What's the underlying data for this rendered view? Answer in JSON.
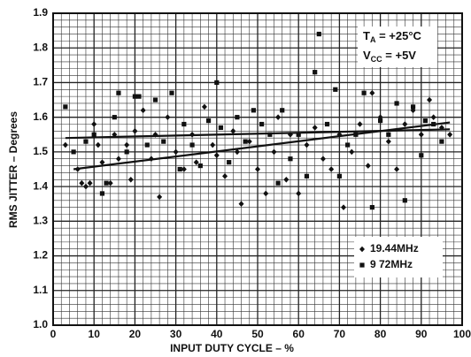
{
  "chart_data": {
    "type": "scatter",
    "xlabel": "INPUT DUTY CYCLE – %",
    "ylabel": "RMS JITTER – Degrees",
    "xlim": [
      0,
      100
    ],
    "ylim": [
      1.0,
      1.9
    ],
    "xticks": [
      0,
      10,
      20,
      30,
      40,
      50,
      60,
      70,
      80,
      90,
      100
    ],
    "yticks": [
      {
        "value": 1,
        "label": "1.0"
      },
      1.1,
      1.2,
      1.3,
      1.4,
      1.5,
      1.6,
      1.7,
      1.8,
      1.9
    ],
    "grid": true,
    "legend": "lower right",
    "annotations": [
      [
        "T",
        "A",
        " = +25°C"
      ],
      [
        "V",
        "CC",
        " = +5V"
      ]
    ],
    "series": [
      {
        "name": "19.44MHz",
        "marker": "diamond",
        "color": "#111",
        "x": [
          3,
          6,
          7,
          8,
          9,
          10,
          11,
          12,
          14,
          15,
          16,
          18,
          19,
          20,
          22,
          24,
          25,
          26,
          28,
          30,
          32,
          34,
          35,
          37,
          39,
          40,
          42,
          44,
          45,
          46,
          48,
          50,
          52,
          54,
          55,
          57,
          58,
          60,
          62,
          64,
          66,
          68,
          70,
          71,
          73,
          75,
          77,
          78,
          80,
          82,
          84,
          86,
          88,
          90,
          92,
          93,
          95,
          97
        ],
        "values": [
          1.52,
          1.45,
          1.41,
          1.4,
          1.41,
          1.58,
          1.52,
          1.47,
          1.41,
          1.55,
          1.48,
          1.52,
          1.42,
          1.56,
          1.62,
          1.48,
          1.55,
          1.37,
          1.6,
          1.5,
          1.45,
          1.55,
          1.47,
          1.63,
          1.52,
          1.49,
          1.43,
          1.56,
          1.5,
          1.35,
          1.53,
          1.45,
          1.38,
          1.5,
          1.6,
          1.42,
          1.55,
          1.38,
          1.52,
          1.57,
          1.48,
          1.45,
          1.55,
          1.34,
          1.5,
          1.58,
          1.46,
          1.67,
          1.6,
          1.53,
          1.45,
          1.58,
          1.62,
          1.55,
          1.65,
          1.6,
          1.57,
          1.55
        ]
      },
      {
        "name": "9 72MHz",
        "marker": "square",
        "color": "#111",
        "x": [
          3,
          5,
          8,
          10,
          12,
          13,
          15,
          16,
          18,
          20,
          21,
          23,
          25,
          27,
          29,
          31,
          32,
          34,
          36,
          38,
          40,
          41,
          43,
          45,
          47,
          49,
          51,
          53,
          55,
          56,
          58,
          60,
          62,
          64,
          65,
          67,
          69,
          70,
          72,
          74,
          76,
          78,
          80,
          82,
          84,
          86,
          88,
          90,
          91,
          93,
          95
        ],
        "values": [
          1.63,
          1.5,
          1.53,
          1.55,
          1.38,
          1.41,
          1.6,
          1.67,
          1.5,
          1.66,
          1.66,
          1.52,
          1.65,
          1.53,
          1.67,
          1.45,
          1.58,
          1.52,
          1.46,
          1.59,
          1.7,
          1.57,
          1.47,
          1.6,
          1.53,
          1.62,
          1.58,
          1.55,
          1.41,
          1.62,
          1.48,
          1.55,
          1.43,
          1.73,
          1.84,
          1.58,
          1.68,
          1.43,
          1.52,
          1.55,
          1.67,
          1.34,
          1.59,
          1.55,
          1.64,
          1.36,
          1.63,
          1.49,
          1.59,
          1.58,
          1.53
        ]
      }
    ],
    "trend_lines": [
      {
        "x": [
          5,
          97
        ],
        "values": [
          1.45,
          1.585
        ]
      },
      {
        "x": [
          3,
          97
        ],
        "values": [
          1.54,
          1.565
        ]
      }
    ]
  }
}
